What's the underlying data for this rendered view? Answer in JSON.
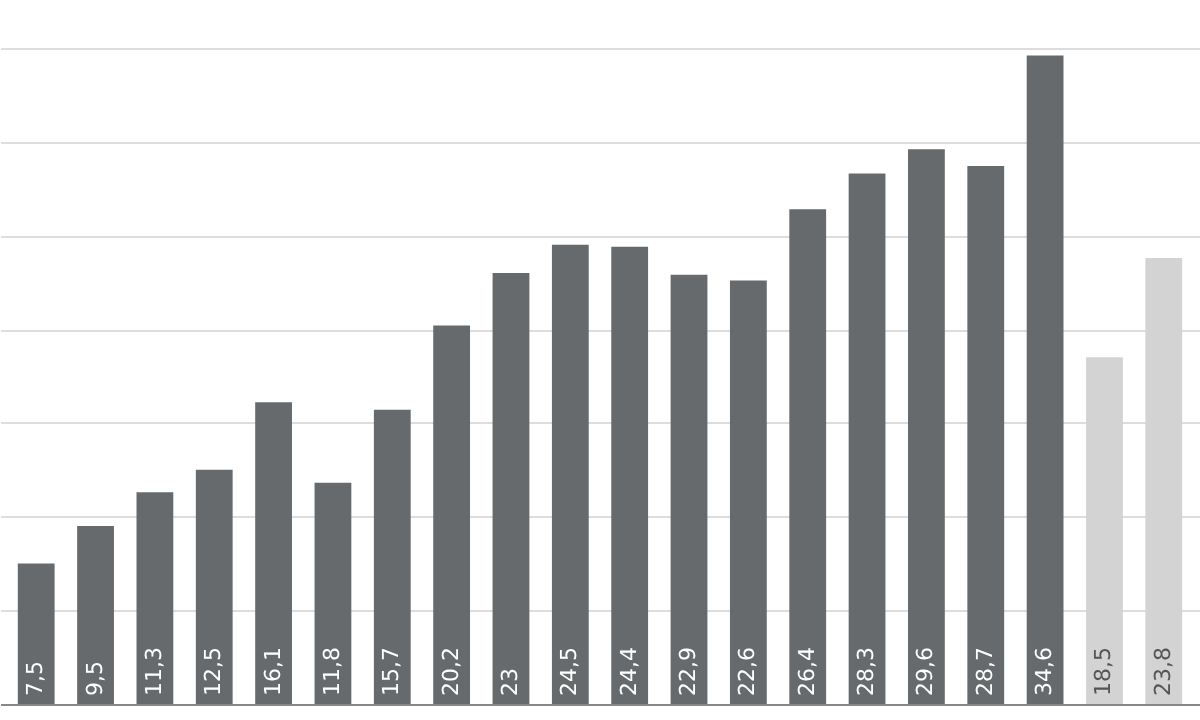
{
  "chart_data": {
    "type": "bar",
    "categories": [
      null,
      null,
      null,
      null,
      null,
      null,
      null,
      null,
      null,
      null,
      null,
      null,
      null,
      null,
      null,
      null,
      null,
      null,
      null,
      null
    ],
    "values": [
      7.5,
      9.5,
      11.3,
      12.5,
      16.1,
      11.8,
      15.7,
      20.2,
      23,
      24.5,
      24.4,
      22.9,
      22.6,
      26.4,
      28.3,
      29.6,
      28.7,
      34.6,
      18.5,
      23.8
    ],
    "colors": [
      "#666a6c",
      "#666a6c",
      "#666a6c",
      "#666a6c",
      "#666a6c",
      "#666a6c",
      "#666a6c",
      "#666a6c",
      "#666a6c",
      "#666a6c",
      "#666a6c",
      "#666a6c",
      "#666a6c",
      "#666a6c",
      "#666a6c",
      "#666a6c",
      "#666a6c",
      "#666a6c",
      "#d3d3d3",
      "#d3d3d3"
    ],
    "value_labels": [
      "7,5",
      "9,5",
      "11,3",
      "12,5",
      "16,1",
      "11,8",
      "15,7",
      "20,2",
      "23",
      "24,5",
      "24,4",
      "22,9",
      "22,6",
      "26,4",
      "28,3",
      "29,6",
      "28,7",
      "34,6",
      "18,5",
      "23,8"
    ],
    "ylim": [
      0,
      35
    ],
    "yticks": [
      {
        "value": 0,
        "label": null
      },
      {
        "value": 5,
        "label": null
      },
      {
        "value": 10,
        "label": null
      },
      {
        "value": 15,
        "label": null
      },
      {
        "value": 20,
        "label": null
      },
      {
        "value": 25,
        "label": null
      },
      {
        "value": 30,
        "label": null
      },
      {
        "value": 35,
        "label": null
      }
    ],
    "grid": "y",
    "tick_labels": false
  }
}
